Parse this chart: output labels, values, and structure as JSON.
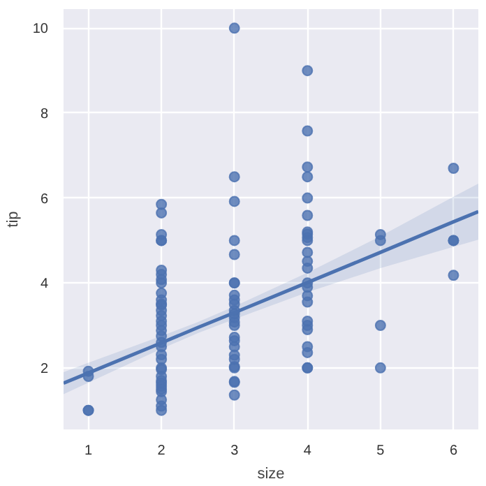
{
  "chart_data": {
    "type": "scatter",
    "xlabel": "size",
    "ylabel": "tip",
    "xlim": [
      0.66,
      6.34
    ],
    "ylim": [
      0.55,
      10.45
    ],
    "xticks": [
      1,
      2,
      3,
      4,
      5,
      6
    ],
    "yticks": [
      2,
      4,
      6,
      8,
      10
    ],
    "grid": true,
    "series": [
      {
        "marker": "circle",
        "color": "#4c72b0",
        "x": [
          1,
          1,
          1,
          1,
          2,
          2,
          2,
          2,
          2,
          2,
          2,
          2,
          2,
          2,
          2,
          2,
          2,
          2,
          2,
          2,
          2,
          2,
          2,
          2,
          2,
          2,
          2,
          2,
          2,
          2,
          2,
          2,
          2,
          2,
          2,
          2,
          2,
          2,
          3,
          3,
          3,
          3,
          3,
          3,
          3,
          3,
          3,
          3,
          3,
          3,
          3,
          3,
          3,
          3,
          3,
          3,
          3,
          3,
          3,
          3,
          3,
          3,
          3,
          4,
          4,
          4,
          4,
          4,
          4,
          4,
          4,
          4,
          4,
          4,
          4,
          4,
          4,
          4,
          4,
          4,
          4,
          4,
          4,
          4,
          4,
          4,
          4,
          5,
          5,
          5,
          5,
          6,
          6,
          6,
          6
        ],
        "values": [
          1.0,
          1.0,
          1.8,
          1.92,
          1.0,
          1.1,
          1.25,
          1.44,
          1.5,
          1.57,
          1.64,
          1.7,
          1.8,
          1.96,
          2.0,
          2.2,
          2.31,
          2.5,
          2.6,
          2.75,
          2.88,
          3.0,
          3.1,
          3.23,
          3.35,
          3.48,
          3.5,
          3.6,
          3.76,
          4.0,
          4.08,
          4.2,
          4.3,
          5.0,
          5.0,
          5.14,
          5.65,
          5.85,
          1.36,
          1.66,
          1.68,
          2.0,
          2.03,
          2.2,
          2.3,
          2.5,
          2.64,
          2.72,
          3.0,
          3.08,
          3.18,
          3.27,
          3.35,
          3.5,
          3.6,
          3.71,
          4.0,
          4.0,
          4.67,
          5.0,
          5.92,
          6.5,
          10.0,
          2.0,
          2.0,
          2.36,
          2.5,
          2.9,
          3.0,
          3.1,
          3.55,
          3.7,
          3.9,
          4.0,
          4.35,
          4.51,
          4.72,
          5.0,
          5.07,
          5.15,
          5.2,
          5.59,
          6.0,
          6.5,
          6.73,
          7.58,
          9.0,
          2.0,
          3.0,
          5.0,
          5.14,
          4.18,
          5.0,
          5.0,
          6.7
        ]
      },
      {
        "type": "line",
        "marker": "none",
        "color": "#4c72b0",
        "x": [
          0.66,
          1,
          2,
          2.5,
          3,
          4,
          5,
          6,
          6.34
        ],
        "values": [
          1.64,
          1.88,
          2.59,
          2.95,
          3.3,
          4.01,
          4.72,
          5.44,
          5.68
        ],
        "lower": [
          1.38,
          1.65,
          2.45,
          2.82,
          3.15,
          3.78,
          4.35,
          4.85,
          5.02
        ],
        "upper": [
          1.9,
          2.12,
          2.75,
          3.08,
          3.45,
          4.24,
          5.1,
          6.03,
          6.34
        ]
      }
    ]
  }
}
